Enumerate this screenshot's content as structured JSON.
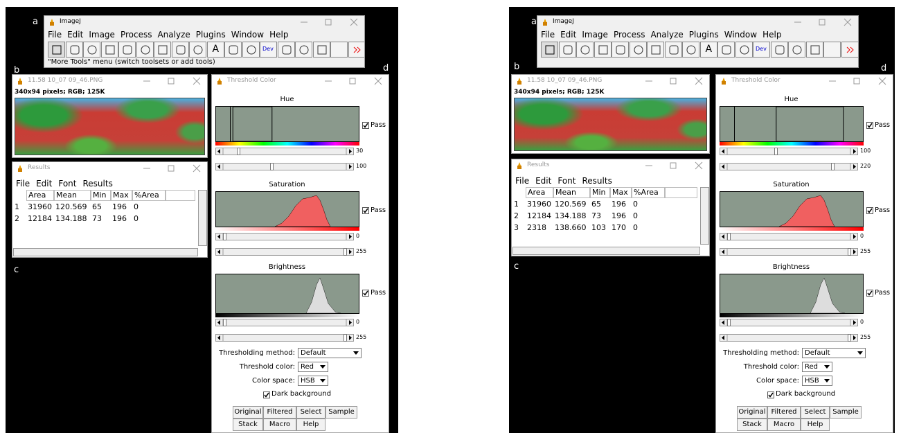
{
  "panels": [
    {
      "label_a": "a",
      "label_b": "b",
      "label_c": "c",
      "label_d": "d",
      "imagej": {
        "title": "ImageJ",
        "menu": [
          "File",
          "Edit",
          "Image",
          "Process",
          "Analyze",
          "Plugins",
          "Window",
          "Help"
        ],
        "tool_text": [
          "A",
          "Dev"
        ],
        "status": "\"More Tools\" menu (switch toolsets or add tools)"
      },
      "image_window": {
        "title": "11.58 10_07 09_46.PNG",
        "info": "340x94 pixels; RGB; 125K"
      },
      "results": {
        "title": "Results",
        "menu": [
          "File",
          "Edit",
          "Font",
          "Results"
        ],
        "columns": [
          "Area",
          "Mean",
          "Min",
          "Max",
          "%Area"
        ],
        "rows": [
          [
            "1",
            "31960",
            "120.569",
            "65",
            "196",
            "0"
          ],
          [
            "2",
            "12184",
            "134.188",
            "73",
            "196",
            "0"
          ]
        ]
      },
      "threshold": {
        "title": "Threshold Color",
        "hue": {
          "label": "Hue",
          "pass": "Pass",
          "min": 30,
          "max": 100
        },
        "saturation": {
          "label": "Saturation",
          "pass": "Pass",
          "min": 0,
          "max": 255
        },
        "brightness": {
          "label": "Brightness",
          "pass": "Pass",
          "min": 0,
          "max": 255
        },
        "method_label": "Thresholding method:",
        "method": "Default",
        "color_label": "Threshold color:",
        "color": "Red",
        "space_label": "Color space:",
        "space": "HSB",
        "dark": "Dark background",
        "buttons": [
          "Original",
          "Filtered",
          "Select",
          "Sample",
          "Stack",
          "Macro",
          "Help"
        ]
      }
    },
    {
      "label_a": "a",
      "label_b": "b",
      "label_c": "c",
      "label_d": "d",
      "imagej": {
        "title": "ImageJ",
        "menu": [
          "File",
          "Edit",
          "Image",
          "Process",
          "Analyze",
          "Plugins",
          "Window",
          "Help"
        ],
        "tool_text": [
          "A",
          "Dev"
        ]
      },
      "image_window": {
        "title": "11.58 10_07 09_46.PNG",
        "info": "340x94 pixels; RGB; 125K"
      },
      "results": {
        "title": "Results",
        "menu": [
          "File",
          "Edit",
          "Font",
          "Results"
        ],
        "columns": [
          "Area",
          "Mean",
          "Min",
          "Max",
          "%Area"
        ],
        "rows": [
          [
            "1",
            "31960",
            "120.569",
            "65",
            "196",
            "0"
          ],
          [
            "2",
            "12184",
            "134.188",
            "73",
            "196",
            "0"
          ],
          [
            "3",
            "2318",
            "138.660",
            "103",
            "170",
            "0"
          ]
        ]
      },
      "threshold": {
        "title": "Threshold Color",
        "hue": {
          "label": "Hue",
          "pass": "Pass",
          "min": 100,
          "max": 220
        },
        "saturation": {
          "label": "Saturation",
          "pass": "Pass",
          "min": 0,
          "max": 255
        },
        "brightness": {
          "label": "Brightness",
          "pass": "Pass",
          "min": 0,
          "max": 255
        },
        "method_label": "Thresholding method:",
        "method": "Default",
        "color_label": "Threshold color:",
        "color": "Red",
        "space_label": "Color space:",
        "space": "HSB",
        "dark": "Dark background",
        "buttons": [
          "Original",
          "Filtered",
          "Select",
          "Sample",
          "Stack",
          "Macro",
          "Help"
        ]
      }
    }
  ]
}
